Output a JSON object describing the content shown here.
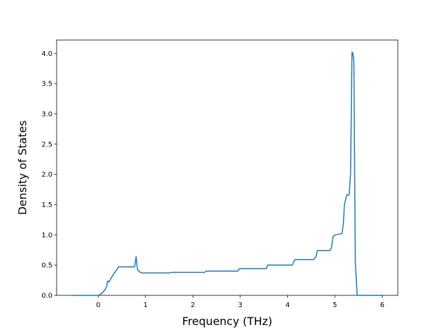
{
  "chart_data": {
    "type": "line",
    "xlabel": "Frequency (THz)",
    "ylabel": "Density of States",
    "x": [
      -0.55,
      0,
      0.05,
      0.1,
      0.15,
      0.18,
      0.2,
      0.23,
      0.27,
      0.3,
      0.35,
      0.4,
      0.43,
      0.77,
      0.8,
      0.83,
      0.87,
      0.92,
      1.5,
      1.55,
      2.25,
      2.28,
      2.95,
      2.98,
      3.55,
      3.58,
      4.1,
      4.15,
      4.55,
      4.6,
      4.63,
      4.9,
      4.93,
      4.96,
      5.0,
      5.15,
      5.18,
      5.2,
      5.25,
      5.3,
      5.33,
      5.36,
      5.38,
      5.4,
      5.43,
      5.47,
      6.0
    ],
    "series": [
      {
        "color": "#1f77b4",
        "values": [
          0,
          0,
          0.02,
          0.05,
          0.1,
          0.15,
          0.24,
          0.22,
          0.28,
          0.32,
          0.38,
          0.43,
          0.47,
          0.47,
          0.64,
          0.43,
          0.39,
          0.37,
          0.37,
          0.38,
          0.38,
          0.4,
          0.4,
          0.44,
          0.44,
          0.5,
          0.5,
          0.59,
          0.59,
          0.64,
          0.74,
          0.74,
          0.8,
          0.97,
          1.0,
          1.02,
          1.2,
          1.5,
          1.66,
          1.66,
          2.0,
          4.02,
          4.0,
          3.86,
          0.55,
          0,
          0
        ]
      }
    ],
    "xlim": [
      -0.8775,
      6.3275
    ],
    "xticks": [
      0,
      1,
      2,
      3,
      4,
      5,
      6
    ],
    "ylim": [
      0,
      4.22
    ],
    "yticks": [
      {
        "value": 0,
        "label": "0.0"
      },
      0.5,
      {
        "value": 1,
        "label": "1.0"
      },
      1.5,
      {
        "value": 2,
        "label": "2.0"
      },
      2.5,
      {
        "value": 3,
        "label": "3.0"
      },
      3.5,
      {
        "value": 4,
        "label": "4.0"
      }
    ]
  }
}
